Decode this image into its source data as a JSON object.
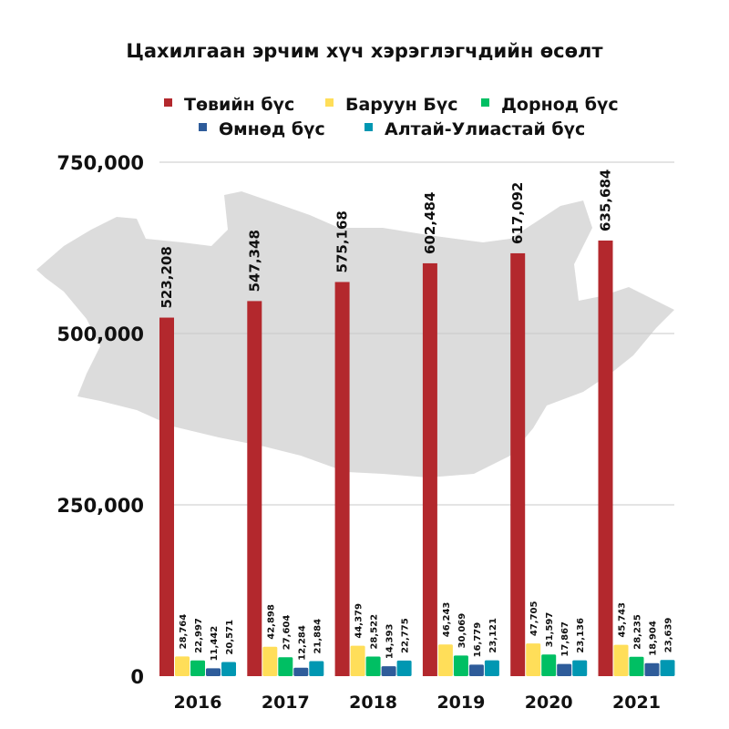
{
  "chart_data": {
    "type": "bar",
    "title": "Цахилгаан эрчим хүч хэрэглэгчдийн өсөлт",
    "categories": [
      "2016",
      "2017",
      "2018",
      "2019",
      "2020",
      "2021"
    ],
    "series": [
      {
        "name": "Төвийн бүс",
        "color": "#b3282d",
        "values": [
          523208,
          547348,
          575168,
          602484,
          617092,
          635684
        ],
        "labels": [
          "523,208",
          "547,348",
          "575,168",
          "602,484",
          "617,092",
          "635,684"
        ]
      },
      {
        "name": "Баруун Бүс",
        "color": "#ffde59",
        "values": [
          28764,
          42898,
          44379,
          46243,
          47705,
          45743
        ],
        "labels": [
          "28,764",
          "42,898",
          "44,379",
          "46,243",
          "47,705",
          "45,743"
        ]
      },
      {
        "name": "Дорнод бүс",
        "color": "#00bf63",
        "values": [
          22997,
          27604,
          28522,
          30069,
          31597,
          28235
        ],
        "labels": [
          "22,997",
          "27,604",
          "28,522",
          "30,069",
          "31,597",
          "28,235"
        ]
      },
      {
        "name": "Өмнөд бүс",
        "color": "#2e5c9a",
        "values": [
          11442,
          12284,
          14393,
          16779,
          17867,
          18904
        ],
        "labels": [
          "11,442",
          "12,284",
          "14,393",
          "16,779",
          "17,867",
          "18,904"
        ]
      },
      {
        "name": "Алтай-Улиастай бүс",
        "color": "#0097b2",
        "values": [
          20571,
          21884,
          22775,
          23121,
          23136,
          23639
        ],
        "labels": [
          "20,571",
          "21,884",
          "22,775",
          "23,121",
          "23,136",
          "23,639"
        ]
      }
    ],
    "yticks": [
      0,
      250000,
      500000,
      750000
    ],
    "ytick_labels": [
      "0",
      "250,000",
      "500,000",
      "750,000"
    ],
    "ylim": [
      0,
      750000
    ],
    "grid": true,
    "legend_position": "top",
    "xlabel": "",
    "ylabel": ""
  }
}
